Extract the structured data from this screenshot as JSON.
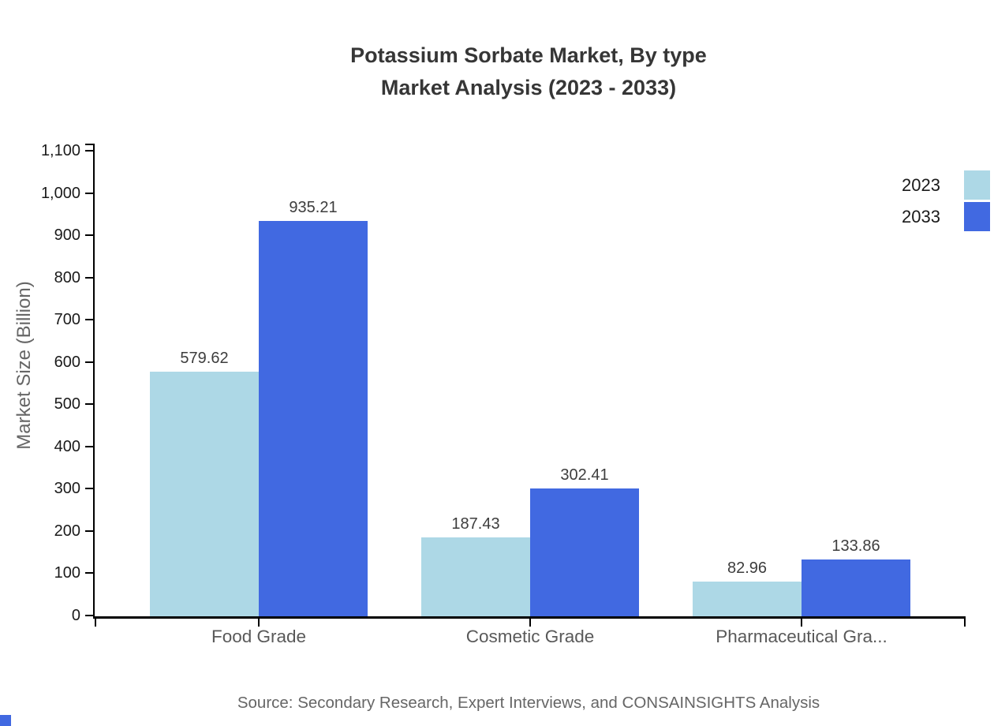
{
  "title": {
    "line1": "Potassium Sorbate Market, By type",
    "line2": "Market Analysis (2023 - 2033)"
  },
  "chart_data": {
    "type": "bar",
    "categories": [
      "Food Grade",
      "Cosmetic Grade",
      "Pharmaceutical Gra..."
    ],
    "series": [
      {
        "name": "2023",
        "color": "#ADD8E6",
        "values": [
          579.62,
          187.43,
          82.96
        ]
      },
      {
        "name": "2033",
        "color": "#4169E1",
        "values": [
          935.21,
          302.41,
          133.86
        ]
      }
    ],
    "value_labels": [
      [
        "579.62",
        "187.43",
        "82.96"
      ],
      [
        "935.21",
        "302.41",
        "133.86"
      ]
    ],
    "title": "Potassium Sorbate Market, By type Market Analysis (2023 - 2033)",
    "xlabel": "",
    "ylabel": "Market Size (Billion)",
    "ylim": [
      0,
      1100
    ],
    "ytick_step": 100,
    "ytick_labels": [
      "0",
      "100",
      "200",
      "300",
      "400",
      "500",
      "600",
      "700",
      "800",
      "900",
      "1,000",
      "1,100"
    ],
    "grid": false,
    "legend_position": "top-right"
  },
  "legend": {
    "items": [
      {
        "label": "2023",
        "color": "#ADD8E6"
      },
      {
        "label": "2033",
        "color": "#4169E1"
      }
    ]
  },
  "source": "Source: Secondary Research, Expert Interviews, and CONSAINSIGHTS Analysis",
  "corner_mark": {
    "color": "#4169E1"
  }
}
